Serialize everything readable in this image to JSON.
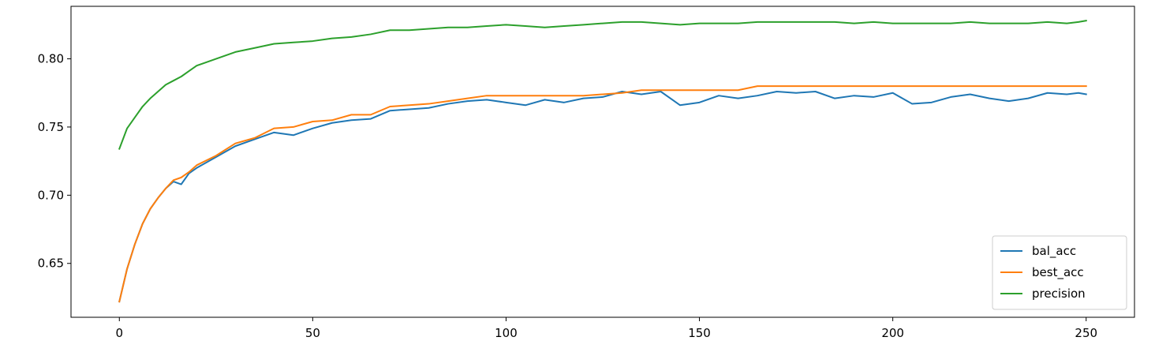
{
  "chart_data": {
    "type": "line",
    "title": "",
    "xlabel": "",
    "ylabel": "",
    "xlim": [
      -12.5,
      262.5
    ],
    "ylim": [
      0.6105,
      0.8385
    ],
    "xticks": [
      {
        "value": 0,
        "label": "0"
      },
      {
        "value": 50,
        "label": "50"
      },
      {
        "value": 100,
        "label": "100"
      },
      {
        "value": 150,
        "label": "150"
      },
      {
        "value": 200,
        "label": "200"
      },
      {
        "value": 250,
        "label": "250"
      }
    ],
    "yticks": [
      {
        "value": 0.65,
        "label": "0.65"
      },
      {
        "value": 0.7,
        "label": "0.70"
      },
      {
        "value": 0.75,
        "label": "0.75"
      },
      {
        "value": 0.8,
        "label": "0.80"
      }
    ],
    "grid": false,
    "legend_position": "lower-right",
    "x": [
      0,
      2,
      4,
      6,
      8,
      10,
      12,
      14,
      16,
      18,
      20,
      25,
      30,
      35,
      40,
      45,
      50,
      55,
      60,
      65,
      70,
      75,
      80,
      85,
      90,
      95,
      100,
      105,
      110,
      115,
      120,
      125,
      130,
      135,
      140,
      145,
      150,
      155,
      160,
      165,
      170,
      175,
      180,
      185,
      190,
      195,
      200,
      205,
      210,
      215,
      220,
      225,
      230,
      235,
      240,
      245,
      248,
      250
    ],
    "series": [
      {
        "name": "bal_acc",
        "color": "#1f77b4",
        "values": [
          0.622,
          0.646,
          0.664,
          0.679,
          0.69,
          0.698,
          0.705,
          0.71,
          0.708,
          0.716,
          0.72,
          0.728,
          0.736,
          0.741,
          0.746,
          0.744,
          0.749,
          0.753,
          0.755,
          0.756,
          0.762,
          0.763,
          0.764,
          0.767,
          0.769,
          0.77,
          0.768,
          0.766,
          0.77,
          0.768,
          0.771,
          0.772,
          0.776,
          0.774,
          0.776,
          0.766,
          0.768,
          0.773,
          0.771,
          0.773,
          0.776,
          0.775,
          0.776,
          0.771,
          0.773,
          0.772,
          0.775,
          0.767,
          0.768,
          0.772,
          0.774,
          0.771,
          0.769,
          0.771,
          0.775,
          0.774,
          0.775,
          0.774
        ]
      },
      {
        "name": "best_acc",
        "color": "#ff7f0e",
        "values": [
          0.622,
          0.646,
          0.664,
          0.679,
          0.69,
          0.698,
          0.705,
          0.711,
          0.713,
          0.717,
          0.722,
          0.729,
          0.738,
          0.742,
          0.749,
          0.75,
          0.754,
          0.755,
          0.759,
          0.759,
          0.765,
          0.766,
          0.767,
          0.769,
          0.771,
          0.773,
          0.773,
          0.773,
          0.773,
          0.773,
          0.773,
          0.774,
          0.775,
          0.777,
          0.777,
          0.777,
          0.777,
          0.777,
          0.777,
          0.78,
          0.78,
          0.78,
          0.78,
          0.78,
          0.78,
          0.78,
          0.78,
          0.78,
          0.78,
          0.78,
          0.78,
          0.78,
          0.78,
          0.78,
          0.78,
          0.78,
          0.78,
          0.78
        ]
      },
      {
        "name": "precision",
        "color": "#2ca02c",
        "values": [
          0.734,
          0.749,
          0.757,
          0.765,
          0.771,
          0.776,
          0.781,
          0.784,
          0.787,
          0.791,
          0.795,
          0.8,
          0.805,
          0.808,
          0.811,
          0.812,
          0.813,
          0.815,
          0.816,
          0.818,
          0.821,
          0.821,
          0.822,
          0.823,
          0.823,
          0.824,
          0.825,
          0.824,
          0.823,
          0.824,
          0.825,
          0.826,
          0.827,
          0.827,
          0.826,
          0.825,
          0.826,
          0.826,
          0.826,
          0.827,
          0.827,
          0.827,
          0.827,
          0.827,
          0.826,
          0.827,
          0.826,
          0.826,
          0.826,
          0.826,
          0.827,
          0.826,
          0.826,
          0.826,
          0.827,
          0.826,
          0.827,
          0.828
        ]
      }
    ]
  }
}
